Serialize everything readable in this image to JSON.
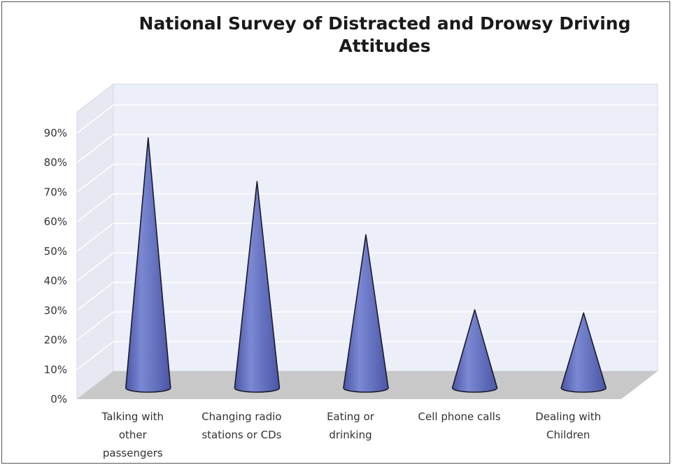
{
  "chart_data": {
    "type": "bar",
    "title_lines": [
      "National Survey of Distracted and Drowsy Driving",
      "Attitudes"
    ],
    "categories": [
      [
        "Talking with",
        "other",
        "passengers"
      ],
      [
        "Changing radio",
        "stations or CDs"
      ],
      [
        "Eating or",
        "drinking"
      ],
      [
        "Cell phone calls"
      ],
      [
        "Dealing with",
        "Children"
      ]
    ],
    "values": [
      0.8,
      0.66,
      0.49,
      0.25,
      0.24
    ],
    "yticks": [
      "0%",
      "10%",
      "20%",
      "30%",
      "40%",
      "50%",
      "60%",
      "70%",
      "80%",
      "90%"
    ],
    "ylim": [
      0,
      0.9
    ],
    "grid": true,
    "bar_shape": "cone",
    "colors": {
      "cone": "#7b89d4",
      "cone_dark": "#4a56a6",
      "back_wall": "#eceef8",
      "side_wall": "#e6e8f2",
      "floor": "#c8c8c8",
      "grid": "#ffffff"
    }
  }
}
